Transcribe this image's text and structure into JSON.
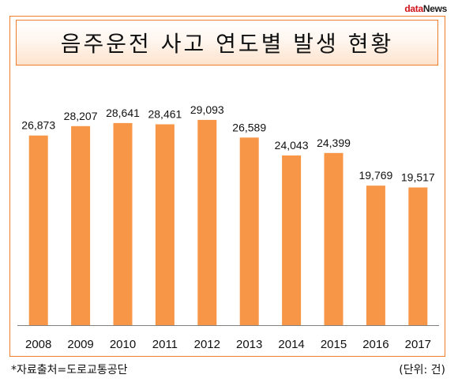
{
  "logo": {
    "part_a": "data",
    "part_b": "News"
  },
  "chart_data": {
    "type": "bar",
    "title": "음주운전 사고 연도별 발생 현황",
    "categories": [
      "2008",
      "2009",
      "2010",
      "2011",
      "2012",
      "2013",
      "2014",
      "2015",
      "2016",
      "2017"
    ],
    "values": [
      26873,
      28207,
      28641,
      28461,
      29093,
      26589,
      24043,
      24399,
      19769,
      19517
    ],
    "value_labels": [
      "26,873",
      "28,207",
      "28,641",
      "28,461",
      "29,093",
      "26,589",
      "24,043",
      "24,399",
      "19,769",
      "19,517"
    ],
    "ylim": [
      0,
      34000
    ],
    "grid": false,
    "legend": "none",
    "bar_color": "#f79646",
    "frame_color": "#ee7d2e"
  },
  "footer": {
    "source": "*자료출처=도로교통공단",
    "unit": "(단위: 건)"
  }
}
